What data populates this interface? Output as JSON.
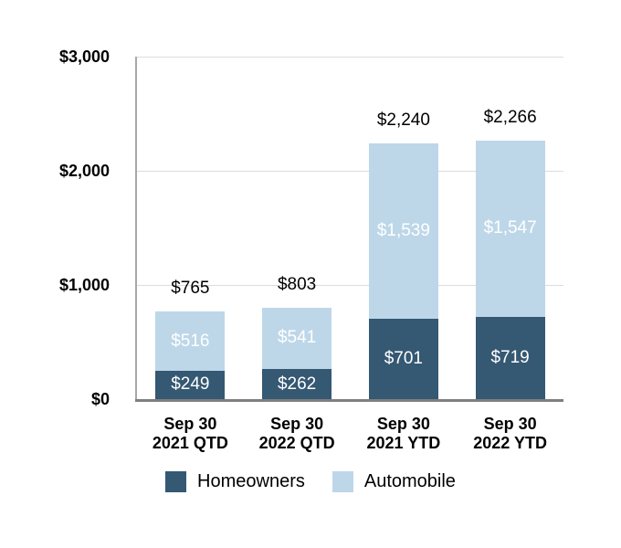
{
  "chart_data": {
    "type": "bar",
    "stacked": true,
    "title": "",
    "categories": [
      {
        "line1": "Sep 30",
        "line2": "2021 QTD"
      },
      {
        "line1": "Sep 30",
        "line2": "2022 QTD"
      },
      {
        "line1": "Sep 30",
        "line2": "2021 YTD"
      },
      {
        "line1": "Sep 30",
        "line2": "2022 YTD"
      }
    ],
    "series": [
      {
        "name": "Homeowners",
        "color": "#355873",
        "values": [
          249,
          262,
          701,
          719
        ],
        "labels": [
          "$249",
          "$262",
          "$701",
          "$719"
        ]
      },
      {
        "name": "Automobile",
        "color": "#bdd7e9",
        "values": [
          516,
          541,
          1539,
          1547
        ],
        "labels": [
          "$516",
          "$541",
          "$1,539",
          "$1,547"
        ]
      }
    ],
    "totals": {
      "values": [
        765,
        803,
        2240,
        2266
      ],
      "labels": [
        "$765",
        "$803",
        "$2,240",
        "$2,266"
      ]
    },
    "y_axis": {
      "min": 0,
      "max": 3000,
      "ticks": [
        {
          "value": 0,
          "label": "$0"
        },
        {
          "value": 1000,
          "label": "$1,000"
        },
        {
          "value": 2000,
          "label": "$2,000"
        },
        {
          "value": 3000,
          "label": "$3,000"
        }
      ]
    },
    "legend": {
      "position": "bottom",
      "items": [
        {
          "label": "Homeowners",
          "color": "#355873"
        },
        {
          "label": "Automobile",
          "color": "#bdd7e9"
        }
      ]
    },
    "grid": true
  },
  "colors": {
    "background": "#ffffff",
    "gridline": "#dddddd",
    "y_axis_line": "#a8a8a8",
    "x_axis_line": "#7f7f7f",
    "segment_label_text": "#ffffff",
    "text": "#000000"
  }
}
